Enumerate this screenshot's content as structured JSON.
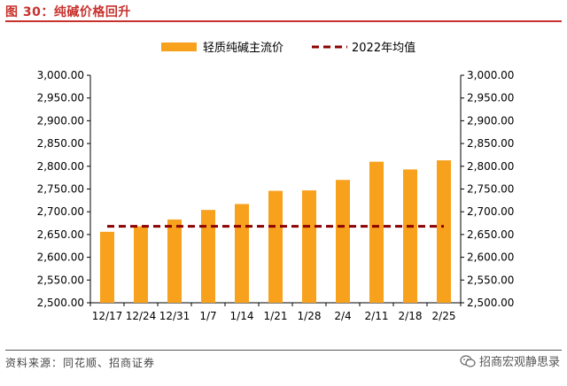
{
  "figure": {
    "title": "图 30：纯碱价格回升",
    "source": "资料来源：同花顺、招商证券",
    "watermark": "招商宏观静思录",
    "watermark_icon": "wechat-icon"
  },
  "colors": {
    "bar": "#f8a11c",
    "avg_line": "#8b0000",
    "title": "#c8322d"
  },
  "chart_data": {
    "type": "bar",
    "categories": [
      "12/17",
      "12/24",
      "12/31",
      "1/7",
      "1/14",
      "1/21",
      "1/28",
      "2/4",
      "2/11",
      "2/18",
      "2/25"
    ],
    "series": [
      {
        "name": "轻质纯碱主流价",
        "type": "bar",
        "values": [
          2656,
          2668,
          2683,
          2704,
          2717,
          2746,
          2747,
          2770,
          2810,
          2793,
          2813
        ]
      },
      {
        "name": "2022年均值",
        "type": "line",
        "style": "dashed",
        "values": [
          2668,
          2668,
          2668,
          2668,
          2668,
          2668,
          2668,
          2668,
          2668,
          2668,
          2668
        ]
      }
    ],
    "yticks": [
      "2,500.00",
      "2,550.00",
      "2,600.00",
      "2,650.00",
      "2,700.00",
      "2,750.00",
      "2,800.00",
      "2,850.00",
      "2,900.00",
      "2,950.00",
      "3,000.00"
    ],
    "ylim": [
      2500,
      3000
    ],
    "secondary_ylim": [
      2500,
      3000
    ],
    "grid": false,
    "legend_position": "top-center"
  }
}
